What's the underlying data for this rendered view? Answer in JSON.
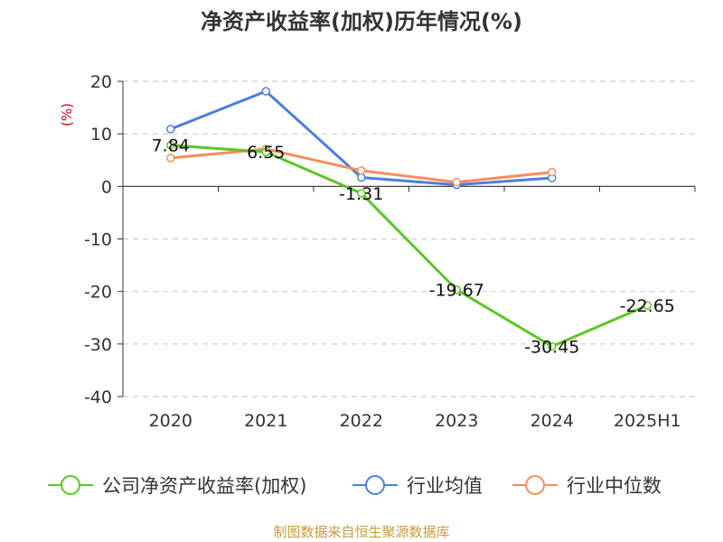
{
  "chart_data": {
    "type": "line",
    "title": "净资产收益率(加权)历年情况(%)",
    "ylabel": "(%)",
    "xlabel": "",
    "categories": [
      "2020",
      "2021",
      "2022",
      "2023",
      "2024",
      "2025H1"
    ],
    "ylim": [
      -40,
      20
    ],
    "yticks": [
      20,
      10,
      0,
      -10,
      -20,
      -30,
      -40
    ],
    "grid": true,
    "legend_position": "bottom",
    "series": [
      {
        "name": "公司净资产收益率(加权)",
        "color": "#5cc624",
        "values": [
          7.84,
          6.55,
          -1.31,
          -19.67,
          -30.45,
          -22.65
        ],
        "labels": [
          "7.84",
          "6.55",
          "-1.31",
          "-19.67",
          "-30.45",
          "-22.65"
        ]
      },
      {
        "name": "行业均值",
        "color": "#4a7fde",
        "values": [
          10.9,
          18.1,
          1.7,
          0.3,
          1.6,
          null
        ]
      },
      {
        "name": "行业中位数",
        "color": "#f78d5c",
        "values": [
          5.4,
          7.1,
          3.0,
          0.8,
          2.7,
          null
        ]
      }
    ]
  },
  "footer": {
    "source": "制图数据来自恒生聚源数据库"
  }
}
